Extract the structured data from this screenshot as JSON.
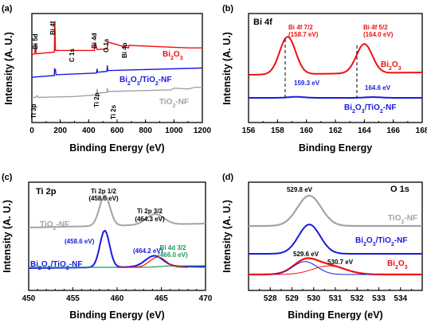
{
  "colors": {
    "red": "#ee1111",
    "blue": "#1a1adf",
    "gray": "#a3a3a3",
    "black": "#000000",
    "green": "#1a9a5a"
  },
  "panels": [
    {
      "label": "(a)",
      "xlabel": "Binding Energy  (eV)",
      "ylabel": "Intensity  (A. U.)"
    },
    {
      "label": "(b)",
      "xlabel": "Binding Energy",
      "ylabel": "Intensity  (A. U.)"
    },
    {
      "label": "(c)",
      "xlabel": "Binding Energy  (eV)",
      "ylabel": "Intensity  (A. U.)"
    },
    {
      "label": "(d)",
      "xlabel": "Binding Energy  (eV)",
      "ylabel": "Intensity  (A. U.)"
    }
  ],
  "chart_data": [
    {
      "type": "line",
      "xlabel": "Binding Energy  (eV)",
      "ylabel": "Intensity  (A. U.)",
      "xlim": [
        0,
        1200
      ],
      "xticks": [
        0,
        200,
        400,
        600,
        800,
        1000,
        1200
      ],
      "series": [
        {
          "name": "Bi2O3",
          "color": "#ee1111",
          "x": [
            0,
            20,
            26,
            30,
            158,
            162,
            166,
            440,
            446,
            460,
            530,
            535,
            680,
            683,
            1100,
            1200
          ],
          "y": [
            8.1,
            8.2,
            9.4,
            8.2,
            8.4,
            12.1,
            8.6,
            8.6,
            9.5,
            8.7,
            8.8,
            9.6,
            8.9,
            9.2,
            8.9,
            8.9
          ]
        },
        {
          "name": "Bi2O3/TiO2-NF",
          "color": "#1a1adf",
          "x": [
            0,
            158,
            160,
            166,
            170,
            455,
            459,
            463,
            529,
            531,
            535,
            1200
          ],
          "y": [
            5.4,
            5.6,
            6.4,
            6.3,
            5.7,
            5.9,
            6.4,
            6.0,
            6.1,
            6.8,
            6.2,
            6.5
          ]
        },
        {
          "name": "TiO2-NF",
          "color": "#a3a3a3",
          "x": [
            0,
            20,
            38,
            42,
            300,
            455,
            459,
            463,
            529,
            531,
            535,
            980,
            1000,
            1100,
            1150,
            1200
          ],
          "y": [
            3.0,
            3.0,
            3.2,
            3.0,
            3.1,
            3.3,
            4.0,
            3.5,
            3.6,
            4.1,
            3.7,
            3.9,
            4.1,
            4.0,
            4.2,
            4.2
          ]
        }
      ],
      "annotations": [
        "Bi 5d",
        "Bi 4f",
        "Bi 4d",
        "C 1s",
        "O 1s",
        "Bi 4p",
        "Ti 3p",
        "Ti 2p",
        "Ti 2s"
      ],
      "series_labels": [
        "Bi2O3",
        "Bi2O3/TiO2-NF",
        "TiO2-NF"
      ]
    },
    {
      "type": "line",
      "title": "Bi 4f",
      "xlabel": "Binding Energy",
      "ylabel": "Intensity  (A. U.)",
      "xlim": [
        156,
        168
      ],
      "xticks": [
        156,
        158,
        160,
        162,
        164,
        166,
        168
      ],
      "series": [
        {
          "name": "Bi2O3",
          "color": "#ee1111",
          "peaks": [
            {
              "center": 158.7,
              "height": 1.0
            },
            {
              "center": 164.0,
              "height": 0.78
            }
          ]
        },
        {
          "name": "Bi2O3/TiO2-NF",
          "color": "#1a1adf",
          "peaks": [
            {
              "center": 159.3,
              "height": 0.16
            },
            {
              "center": 164.6,
              "height": 0.12
            }
          ]
        }
      ],
      "annotations": [
        {
          "text": "Bi 4f 7/2",
          "text2": "(158.7 eV)",
          "color": "#ee1111"
        },
        {
          "text": "Bi 4f 5/2",
          "text2": "(164.0 eV)",
          "color": "#ee1111"
        },
        {
          "text": "159.3 eV",
          "color": "#1a1adf"
        },
        {
          "text": "164.6 eV",
          "color": "#1a1adf"
        }
      ],
      "series_labels": [
        "Bi2O3",
        "Bi2O3/TiO2-NF"
      ]
    },
    {
      "type": "line",
      "title": "Ti 2p",
      "xlabel": "Binding Energy  (eV)",
      "ylabel": "Intensity  (A. U.)",
      "xlim": [
        450,
        470
      ],
      "xticks": [
        450,
        455,
        460,
        465,
        470
      ],
      "series": [
        {
          "name": "TiO2-NF",
          "color": "#a3a3a3",
          "peaks": [
            {
              "center": 458.6,
              "height": 1.0
            },
            {
              "center": 464.3,
              "height": 0.35
            }
          ]
        },
        {
          "name": "Bi2O3/TiO2-NF",
          "color": "#1a1adf",
          "peaks": [
            {
              "center": 458.6,
              "height": 1.0
            },
            {
              "center": 464.2,
              "height": 0.3
            }
          ]
        },
        {
          "name": "Bi 4d 3/2",
          "color": "#1a9a5a",
          "peaks": [
            {
              "center": 466.0,
              "height": 0.12
            }
          ]
        }
      ],
      "annotations": [
        {
          "text": "Ti 2p 1/2",
          "text2": "(458.6 eV)",
          "color": "#000000"
        },
        {
          "text": "Ti 2p 3/2",
          "text2": "(464.3 eV)",
          "color": "#000000"
        },
        {
          "text": "(458.6 eV)",
          "color": "#1a1adf"
        },
        {
          "text": "(464.2 eV)",
          "color": "#1a1adf"
        },
        {
          "text": "Bi 4d 3/2",
          "text2": "(466.0 eV)",
          "color": "#1a9a5a"
        }
      ],
      "series_labels": [
        "TiO2-NF",
        "Bi2O3/TiO2-NF"
      ]
    },
    {
      "type": "line",
      "title": "O 1s",
      "xlabel": "Binding Energy  (eV)",
      "ylabel": "Intensity  (A. U.)",
      "xlim": [
        527,
        535
      ],
      "xticks": [
        528,
        529,
        530,
        531,
        532,
        533,
        534
      ],
      "series": [
        {
          "name": "TiO2-NF",
          "color": "#a3a3a3",
          "peaks": [
            {
              "center": 529.8,
              "height": 1.0
            }
          ]
        },
        {
          "name": "Bi2O3/TiO2-NF",
          "color": "#1a1adf",
          "peaks": [
            {
              "center": 529.8,
              "height": 0.8
            }
          ]
        },
        {
          "name": "Bi2O3",
          "color": "#ee1111",
          "peaks": [
            {
              "center": 529.6,
              "height": 0.45
            },
            {
              "center": 530.7,
              "height": 0.3
            }
          ]
        }
      ],
      "annotations": [
        {
          "text": "529.8 eV",
          "color": "#000000"
        },
        {
          "text": "529.6 eV",
          "color": "#000000"
        },
        {
          "text": "530.7 eV",
          "color": "#000000"
        }
      ],
      "series_labels": [
        "TiO2-NF",
        "Bi2O3/TiO2-NF",
        "Bi2O3"
      ]
    }
  ]
}
